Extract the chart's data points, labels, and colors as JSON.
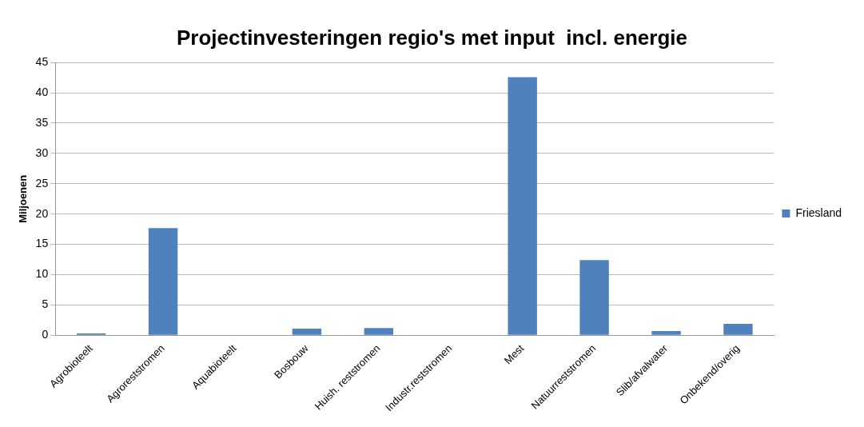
{
  "chart_data": {
    "type": "bar",
    "title": "Projectinvesteringen regio's met input  incl. energie",
    "ylabel": "Miljoenen",
    "categories": [
      "Agrobioteelt",
      "Agroreststromen",
      "Aquabioteelt",
      "Bosbouw",
      "Huish. reststromen",
      "Industr.reststromen",
      "Mest",
      "Natuurreststromen",
      "Slib/afvalwater",
      "Onbekend/overig"
    ],
    "series": [
      {
        "name": "Friesland",
        "color": "#4f81bd",
        "values": [
          0.3,
          17.7,
          0,
          1.1,
          1.2,
          0,
          42.6,
          12.4,
          0.7,
          1.9
        ]
      }
    ],
    "ylim": [
      0,
      45
    ],
    "yticks": [
      0,
      5,
      10,
      15,
      20,
      25,
      30,
      35,
      40,
      45
    ],
    "grid": "y",
    "legend": "right"
  }
}
